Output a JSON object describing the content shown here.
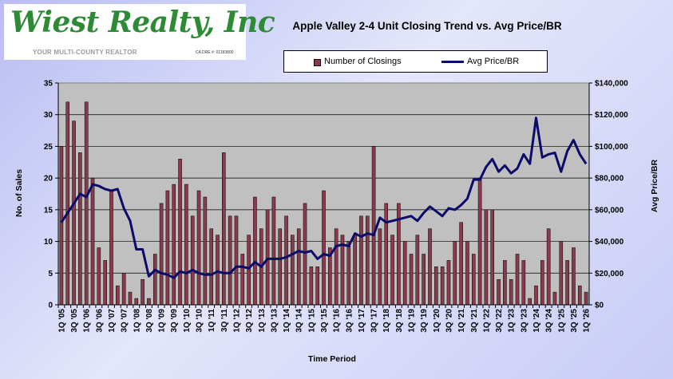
{
  "logo": {
    "brand_text": "Wiest Realty, Inc",
    "tagline": "YOUR MULTI-COUNTY REALTOR",
    "license": "CA DRE #: 01183800"
  },
  "chart_data": {
    "type": "bar+line",
    "title": "Apple Valley 2-4 Unit Closing Trend vs. Avg Price/BR",
    "xlabel": "Time Period",
    "ylabel": "No. of Sales",
    "y2label": "Avg Price/BR",
    "ylim": [
      0,
      35
    ],
    "yticks": [
      0,
      5,
      10,
      15,
      20,
      25,
      30,
      35
    ],
    "y2lim": [
      0,
      140000
    ],
    "y2ticks": [
      "$0",
      "$20,000",
      "$40,000",
      "$60,000",
      "$80,000",
      "$100,000",
      "$120,000",
      "$140,000"
    ],
    "y2tick_values": [
      0,
      20000,
      40000,
      60000,
      80000,
      100000,
      120000,
      140000
    ],
    "grid": true,
    "legend_position": "top-center",
    "categories": [
      "1Q '05",
      "2Q '05",
      "3Q '05",
      "4Q '05",
      "1Q '06",
      "2Q '06",
      "3Q '06",
      "4Q '06",
      "1Q '07",
      "2Q '07",
      "3Q '07",
      "4Q '07",
      "1Q '08",
      "2Q '08",
      "3Q '08",
      "4Q '08",
      "1Q '09",
      "2Q '09",
      "3Q '09",
      "4Q '09",
      "1Q '10",
      "2Q '10",
      "3Q '10",
      "4Q '10",
      "1Q '11",
      "2Q '11",
      "3Q '11",
      "4Q '11",
      "1Q '12",
      "2Q '12",
      "3Q '12",
      "4Q '12",
      "1Q '13",
      "2Q '13",
      "3Q '13",
      "4Q '13",
      "1Q '14",
      "2Q '14",
      "3Q '14",
      "4Q '14",
      "1Q '15",
      "2Q '15",
      "3Q '15",
      "4Q '15",
      "1Q '16",
      "2Q '16",
      "3Q '16",
      "4Q '16",
      "1Q '17",
      "2Q '17",
      "3Q '17",
      "4Q '17",
      "1Q '18",
      "2Q '18",
      "3Q '18",
      "4Q '18",
      "1Q '19",
      "2Q '19",
      "3Q '19",
      "4Q '19",
      "1Q '20",
      "2Q '20",
      "3Q '20",
      "4Q '20",
      "1Q '21",
      "2Q '21",
      "3Q '21",
      "4Q '21",
      "1Q '22",
      "2Q '22",
      "3Q '22",
      "4Q '22",
      "1Q '23",
      "2Q '23",
      "3Q '23",
      "4Q '23",
      "1Q '24",
      "2Q '24",
      "3Q '24",
      "4Q '24",
      "1Q '25",
      "2Q '25",
      "3Q '25",
      "4Q '25",
      "1Q '26"
    ],
    "xtick_labels": [
      "1Q '05",
      "3Q '05",
      "1Q '06",
      "3Q '06",
      "1Q '07",
      "3Q '07",
      "1Q '08",
      "3Q '08",
      "1Q '09",
      "3Q '09",
      "1Q '10",
      "3Q '10",
      "1Q '11",
      "3Q '11",
      "1Q '12",
      "3Q '12",
      "1Q '13",
      "3Q '13",
      "1Q '14",
      "3Q '14",
      "1Q '15",
      "3Q '15",
      "1Q '16",
      "3Q '16",
      "1Q '17",
      "3Q '17",
      "1Q '18",
      "3Q '18",
      "1Q '19",
      "3Q '19",
      "1Q '20",
      "3Q '20",
      "1Q '21",
      "3Q '21",
      "1Q '22",
      "3Q '22",
      "1Q '23",
      "3Q '23",
      "1Q '24",
      "3Q '24",
      "1Q '25",
      "3Q '25",
      "1Q '26"
    ],
    "series": [
      {
        "name": "Number of Closings",
        "type": "bar",
        "axis": "left",
        "color": "#8b3a4e",
        "values": [
          25,
          32,
          29,
          24,
          32,
          20,
          9,
          7,
          18,
          3,
          5,
          2,
          1,
          4,
          1,
          8,
          16,
          18,
          19,
          23,
          19,
          14,
          18,
          17,
          12,
          11,
          24,
          14,
          14,
          8,
          11,
          17,
          12,
          15,
          17,
          12,
          14,
          11,
          12,
          16,
          6,
          6,
          18,
          9,
          12,
          11,
          10,
          11,
          14,
          14,
          25,
          12,
          16,
          11,
          16,
          10,
          8,
          11,
          8,
          12,
          6,
          6,
          7,
          10,
          13,
          10,
          8,
          20,
          15,
          15,
          4,
          7,
          4,
          8,
          7,
          1,
          3,
          7,
          12,
          2,
          10,
          7,
          9,
          3,
          2
        ]
      },
      {
        "name": "Avg Price/BR",
        "type": "line",
        "axis": "right",
        "color": "#0b0b6b",
        "values": [
          52000,
          58000,
          64000,
          70000,
          68000,
          76000,
          75000,
          73000,
          72000,
          73000,
          61000,
          53000,
          35000,
          35000,
          18000,
          22000,
          20000,
          19000,
          17000,
          21000,
          20000,
          22000,
          20000,
          19000,
          19000,
          21000,
          20000,
          20000,
          24000,
          24000,
          23000,
          27000,
          24000,
          29000,
          29000,
          29000,
          30000,
          32000,
          34000,
          33000,
          34000,
          29000,
          32000,
          31000,
          37000,
          38000,
          37000,
          45000,
          43000,
          45000,
          44000,
          55000,
          52000,
          53000,
          54000,
          55000,
          56000,
          53000,
          58000,
          62000,
          59000,
          56000,
          61000,
          60000,
          63000,
          67000,
          79000,
          79000,
          87000,
          92000,
          84000,
          88000,
          83000,
          86000,
          95000,
          89000,
          118000,
          93000,
          95000,
          96000,
          84000,
          97000,
          104000,
          95000,
          89000
        ]
      }
    ]
  }
}
